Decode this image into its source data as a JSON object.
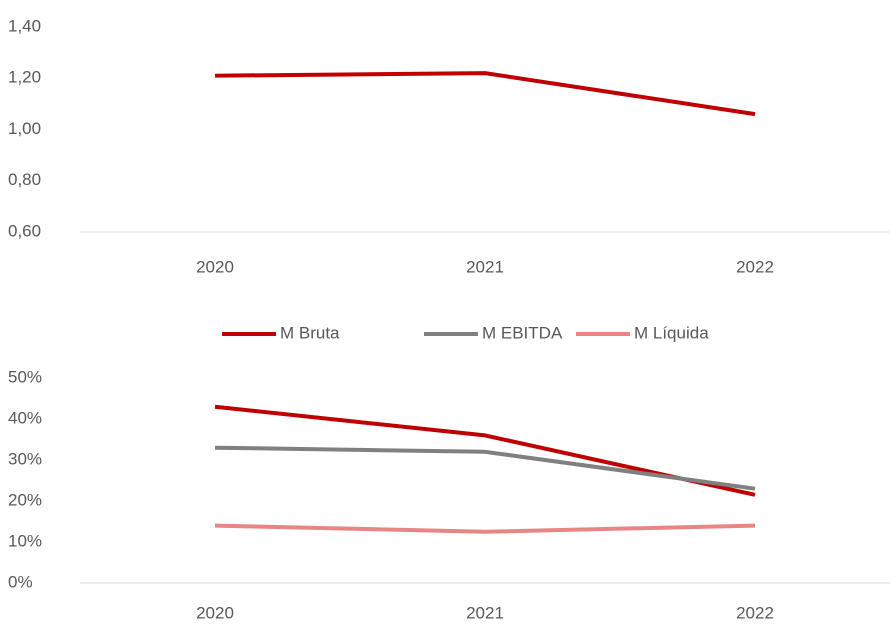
{
  "chart_data": [
    {
      "type": "line",
      "categories": [
        "2020",
        "2021",
        "2022"
      ],
      "series": [
        {
          "color": "#c00000",
          "values": [
            1.21,
            1.22,
            1.06
          ]
        }
      ],
      "ylim": [
        0.6,
        1.4
      ],
      "yticks": [
        {
          "value": 0.6,
          "label": "0,60"
        },
        {
          "value": 0.8,
          "label": "0,80"
        },
        {
          "value": 1.0,
          "label": "1,00"
        },
        {
          "value": 1.2,
          "label": "1,20"
        },
        {
          "value": 1.4,
          "label": "1,40"
        }
      ],
      "grid": false
    },
    {
      "type": "line",
      "categories": [
        "2020",
        "2021",
        "2022"
      ],
      "series": [
        {
          "name": "M Bruta",
          "color": "#c00000",
          "values": [
            43,
            36,
            21.5
          ]
        },
        {
          "name": "M EBITDA",
          "color": "#808080",
          "values": [
            33,
            32,
            23
          ]
        },
        {
          "name": "M Líquida",
          "color": "#e88585",
          "values": [
            14,
            12.5,
            14
          ]
        }
      ],
      "ylim": [
        0,
        50
      ],
      "yticks": [
        {
          "value": 0,
          "label": "0%"
        },
        {
          "value": 10,
          "label": "10%"
        },
        {
          "value": 20,
          "label": "20%"
        },
        {
          "value": 30,
          "label": "30%"
        },
        {
          "value": 40,
          "label": "40%"
        },
        {
          "value": 50,
          "label": "50%"
        }
      ],
      "legend": "top",
      "grid": false
    }
  ]
}
